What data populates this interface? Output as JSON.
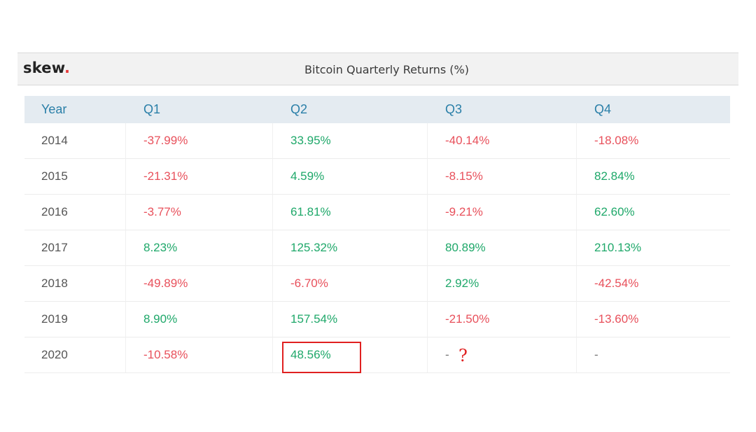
{
  "header": {
    "brand_name": "skew",
    "brand_dot": ".",
    "brand_dot_color": "#e63b3b",
    "title": "Bitcoin Quarterly Returns (%)"
  },
  "colors": {
    "negative": "#e8505b",
    "positive": "#1fa86a",
    "header_text": "#2a7fa8",
    "header_bg": "#e4ebf1",
    "annotation": "#e02020"
  },
  "annotations": {
    "highlight_cell": "2020 Q2",
    "question_mark": "?"
  },
  "chart_data": {
    "type": "table",
    "title": "Bitcoin Quarterly Returns (%)",
    "columns": [
      "Year",
      "Q1",
      "Q2",
      "Q3",
      "Q4"
    ],
    "rows": [
      {
        "year": "2014",
        "values": [
          "-37.99%",
          "33.95%",
          "-40.14%",
          "-18.08%"
        ]
      },
      {
        "year": "2015",
        "values": [
          "-21.31%",
          "4.59%",
          "-8.15%",
          "82.84%"
        ]
      },
      {
        "year": "2016",
        "values": [
          "-3.77%",
          "61.81%",
          "-9.21%",
          "62.60%"
        ]
      },
      {
        "year": "2017",
        "values": [
          "8.23%",
          "125.32%",
          "80.89%",
          "210.13%"
        ]
      },
      {
        "year": "2018",
        "values": [
          "-49.89%",
          "-6.70%",
          "2.92%",
          "-42.54%"
        ]
      },
      {
        "year": "2019",
        "values": [
          "8.90%",
          "157.54%",
          "-21.50%",
          "-13.60%"
        ]
      },
      {
        "year": "2020",
        "values": [
          "-10.58%",
          "48.56%",
          "-",
          "-"
        ]
      }
    ]
  }
}
